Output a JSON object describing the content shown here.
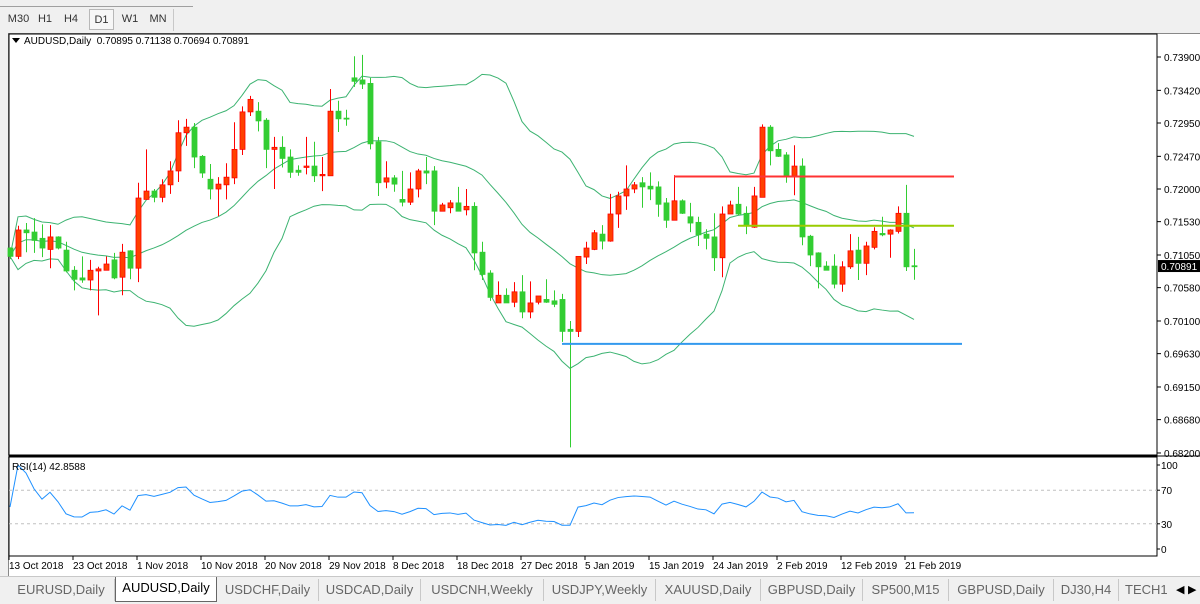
{
  "timeframes": [
    {
      "label": "M30",
      "active": false
    },
    {
      "label": "H1",
      "active": false
    },
    {
      "label": "H4",
      "active": false
    },
    {
      "label": "D1",
      "active": true
    },
    {
      "label": "W1",
      "active": false
    },
    {
      "label": "MN",
      "active": false
    }
  ],
  "chart_header": {
    "symbol": "AUDUSD,Daily",
    "ohlc": "0.70895 0.71138 0.70694 0.70891"
  },
  "rsi_header": "RSI(14) 42.8588",
  "tabs": [
    {
      "label": "EURUSD,Daily",
      "active": false
    },
    {
      "label": "AUDUSD,Daily",
      "active": true
    },
    {
      "label": "USDCHF,Daily",
      "active": false
    },
    {
      "label": "USDCAD,Daily",
      "active": false
    },
    {
      "label": "USDCNH,Weekly",
      "active": false
    },
    {
      "label": "USDJPY,Weekly",
      "active": false
    },
    {
      "label": "XAUUSD,Daily",
      "active": false
    },
    {
      "label": "GBPUSD,Daily",
      "active": false
    },
    {
      "label": "SP500,M15",
      "active": false
    },
    {
      "label": "GBPUSD,Daily",
      "active": false
    },
    {
      "label": "DJ30,H4",
      "active": false
    },
    {
      "label": "TECH1",
      "active": false
    }
  ],
  "tab_scroll_icons": [
    "chevron-left-icon",
    "chevron-right-icon"
  ],
  "chart_data": {
    "type": "candlestick",
    "symbol": "AUDUSD",
    "timeframe": "Daily",
    "colors": {
      "bull_body": "#FF4000",
      "bull_border": "#FF0000",
      "bear_body": "#32CD32",
      "bands": "#3CB371",
      "rsi": "#1E90FF",
      "current_price_bg": "#000000"
    },
    "ylim": [
      0.682,
      0.7402
    ],
    "price_ticks": [
      "0.73900",
      "0.73420",
      "0.72950",
      "0.72470",
      "0.72000",
      "0.71530",
      "0.71050",
      "0.70580",
      "0.70100",
      "0.69630",
      "0.69150",
      "0.68680",
      "0.68200"
    ],
    "current_price": "0.70891",
    "date_labels": [
      "13 Oct 2018",
      "23 Oct 2018",
      "1 Nov 2018",
      "10 Nov 2018",
      "20 Nov 2018",
      "29 Nov 2018",
      "8 Dec 2018",
      "18 Dec 2018",
      "27 Dec 2018",
      "5 Jan 2019",
      "15 Jan 2019",
      "24 Jan 2019",
      "2 Feb 2019",
      "12 Feb 2019",
      "21 Feb 2019"
    ],
    "date_label_every_bars": 8,
    "ohlc_fields": [
      "open",
      "high",
      "low",
      "close"
    ],
    "candles": [
      [
        0.7115,
        0.7116,
        0.7099,
        0.7103
      ],
      [
        0.7103,
        0.7147,
        0.7099,
        0.7141
      ],
      [
        0.7141,
        0.7151,
        0.7109,
        0.7137
      ],
      [
        0.7138,
        0.7158,
        0.7108,
        0.7126
      ],
      [
        0.7129,
        0.7149,
        0.7102,
        0.7115
      ],
      [
        0.7113,
        0.7148,
        0.7086,
        0.7131
      ],
      [
        0.7131,
        0.7132,
        0.7113,
        0.7115
      ],
      [
        0.7112,
        0.7124,
        0.708,
        0.7082
      ],
      [
        0.7083,
        0.7089,
        0.7054,
        0.707
      ],
      [
        0.7072,
        0.7103,
        0.7065,
        0.7069
      ],
      [
        0.7069,
        0.7098,
        0.7054,
        0.7083
      ],
      [
        0.7082,
        0.7088,
        0.7018,
        0.7085
      ],
      [
        0.7083,
        0.7103,
        0.7083,
        0.7092
      ],
      [
        0.7098,
        0.7108,
        0.707,
        0.7072
      ],
      [
        0.7073,
        0.7121,
        0.7047,
        0.7109
      ],
      [
        0.7111,
        0.7112,
        0.707,
        0.7086
      ],
      [
        0.7086,
        0.7209,
        0.7066,
        0.7187
      ],
      [
        0.7185,
        0.7257,
        0.7185,
        0.7197
      ],
      [
        0.7197,
        0.72,
        0.7181,
        0.7188
      ],
      [
        0.7188,
        0.7214,
        0.7181,
        0.7206
      ],
      [
        0.7206,
        0.724,
        0.7193,
        0.7226
      ],
      [
        0.7226,
        0.7299,
        0.721,
        0.7281
      ],
      [
        0.7281,
        0.7301,
        0.7262,
        0.7289
      ],
      [
        0.7289,
        0.7295,
        0.723,
        0.7246
      ],
      [
        0.7247,
        0.7249,
        0.7216,
        0.7223
      ],
      [
        0.7214,
        0.7236,
        0.7185,
        0.72
      ],
      [
        0.72,
        0.7217,
        0.7161,
        0.7207
      ],
      [
        0.7206,
        0.7237,
        0.7185,
        0.7217
      ],
      [
        0.7216,
        0.7296,
        0.7207,
        0.7257
      ],
      [
        0.7257,
        0.7319,
        0.7249,
        0.7311
      ],
      [
        0.7311,
        0.7334,
        0.7305,
        0.7329
      ],
      [
        0.7312,
        0.7325,
        0.7283,
        0.7298
      ],
      [
        0.7299,
        0.7302,
        0.723,
        0.7257
      ],
      [
        0.7257,
        0.7275,
        0.72,
        0.726
      ],
      [
        0.726,
        0.7276,
        0.7231,
        0.7244
      ],
      [
        0.7246,
        0.7257,
        0.7216,
        0.7224
      ],
      [
        0.7227,
        0.7234,
        0.7219,
        0.7224
      ],
      [
        0.7231,
        0.7275,
        0.7221,
        0.7233
      ],
      [
        0.7233,
        0.7268,
        0.721,
        0.7219
      ],
      [
        0.7219,
        0.7246,
        0.7197,
        0.7221
      ],
      [
        0.7219,
        0.7344,
        0.7219,
        0.7312
      ],
      [
        0.7312,
        0.7327,
        0.7282,
        0.7301
      ],
      [
        0.7302,
        0.7314,
        0.7291,
        0.7301
      ],
      [
        0.736,
        0.7391,
        0.7347,
        0.7355
      ],
      [
        0.7357,
        0.7393,
        0.7344,
        0.7351
      ],
      [
        0.7352,
        0.736,
        0.7257,
        0.7265
      ],
      [
        0.7268,
        0.7275,
        0.719,
        0.7209
      ],
      [
        0.721,
        0.724,
        0.7201,
        0.7216
      ],
      [
        0.7216,
        0.722,
        0.7196,
        0.7207
      ],
      [
        0.7185,
        0.7226,
        0.7175,
        0.7181
      ],
      [
        0.7181,
        0.7224,
        0.7177,
        0.72
      ],
      [
        0.72,
        0.7229,
        0.7188,
        0.7226
      ],
      [
        0.7226,
        0.7246,
        0.7207,
        0.7223
      ],
      [
        0.7226,
        0.7233,
        0.7148,
        0.7168
      ],
      [
        0.7168,
        0.718,
        0.7168,
        0.7177
      ],
      [
        0.7173,
        0.7184,
        0.7165,
        0.718
      ],
      [
        0.718,
        0.7203,
        0.7168,
        0.7168
      ],
      [
        0.717,
        0.72,
        0.7162,
        0.7175
      ],
      [
        0.7175,
        0.7181,
        0.7083,
        0.7108
      ],
      [
        0.7109,
        0.7124,
        0.7069,
        0.7077
      ],
      [
        0.7079,
        0.7083,
        0.7039,
        0.7044
      ],
      [
        0.7036,
        0.7067,
        0.7036,
        0.7047
      ],
      [
        0.7047,
        0.7057,
        0.7036,
        0.7036
      ],
      [
        0.7037,
        0.7066,
        0.703,
        0.7052
      ],
      [
        0.7052,
        0.7076,
        0.7014,
        0.7023
      ],
      [
        0.7023,
        0.7067,
        0.7014,
        0.7036
      ],
      [
        0.7037,
        0.7046,
        0.7034,
        0.7046
      ],
      [
        0.7041,
        0.707,
        0.7036,
        0.7037
      ],
      [
        0.7039,
        0.7054,
        0.703,
        0.7034
      ],
      [
        0.7041,
        0.7049,
        0.698,
        0.6995
      ],
      [
        0.6998,
        0.701,
        0.6828,
        0.6995
      ],
      [
        0.6995,
        0.7103,
        0.6987,
        0.7103
      ],
      [
        0.7102,
        0.7124,
        0.7092,
        0.7115
      ],
      [
        0.7113,
        0.7141,
        0.7112,
        0.7137
      ],
      [
        0.7135,
        0.7148,
        0.7113,
        0.7125
      ],
      [
        0.7125,
        0.7193,
        0.7124,
        0.7164
      ],
      [
        0.7164,
        0.7196,
        0.7144,
        0.719
      ],
      [
        0.719,
        0.7234,
        0.717,
        0.72
      ],
      [
        0.72,
        0.721,
        0.7194,
        0.7206
      ],
      [
        0.7209,
        0.7217,
        0.7173,
        0.7203
      ],
      [
        0.7204,
        0.7224,
        0.7184,
        0.72
      ],
      [
        0.7203,
        0.7211,
        0.716,
        0.7178
      ],
      [
        0.718,
        0.7187,
        0.7144,
        0.7155
      ],
      [
        0.7155,
        0.722,
        0.7155,
        0.7183
      ],
      [
        0.7183,
        0.7185,
        0.7164,
        0.7165
      ],
      [
        0.716,
        0.718,
        0.7138,
        0.7151
      ],
      [
        0.7152,
        0.716,
        0.7118,
        0.7134
      ],
      [
        0.7135,
        0.7142,
        0.7113,
        0.7129
      ],
      [
        0.7131,
        0.7165,
        0.7082,
        0.7101
      ],
      [
        0.7101,
        0.7175,
        0.7073,
        0.7164
      ],
      [
        0.7164,
        0.7183,
        0.7164,
        0.7177
      ],
      [
        0.7178,
        0.7203,
        0.7162,
        0.7164
      ],
      [
        0.7165,
        0.7175,
        0.7135,
        0.7148
      ],
      [
        0.7145,
        0.7203,
        0.7144,
        0.719
      ],
      [
        0.7188,
        0.7293,
        0.7188,
        0.7289
      ],
      [
        0.7289,
        0.7292,
        0.7234,
        0.7255
      ],
      [
        0.7257,
        0.7266,
        0.7246,
        0.7247
      ],
      [
        0.7249,
        0.7253,
        0.7209,
        0.7219
      ],
      [
        0.7219,
        0.7263,
        0.7191,
        0.7233
      ],
      [
        0.7233,
        0.7244,
        0.7119,
        0.7131
      ],
      [
        0.7132,
        0.7134,
        0.7089,
        0.7105
      ],
      [
        0.7108,
        0.7109,
        0.7057,
        0.7088
      ],
      [
        0.7089,
        0.7096,
        0.7083,
        0.7083
      ],
      [
        0.7089,
        0.7106,
        0.7057,
        0.7063
      ],
      [
        0.7063,
        0.7096,
        0.7052,
        0.7088
      ],
      [
        0.7088,
        0.7135,
        0.7085,
        0.7111
      ],
      [
        0.7112,
        0.7131,
        0.7069,
        0.7093
      ],
      [
        0.7093,
        0.7124,
        0.7076,
        0.7118
      ],
      [
        0.7116,
        0.7145,
        0.7113,
        0.7139
      ],
      [
        0.7136,
        0.716,
        0.7132,
        0.7134
      ],
      [
        0.7135,
        0.7142,
        0.7101,
        0.7141
      ],
      [
        0.7139,
        0.7175,
        0.7136,
        0.7165
      ],
      [
        0.7165,
        0.7206,
        0.7082,
        0.7088
      ],
      [
        0.70895,
        0.71138,
        0.70694,
        0.70891
      ]
    ],
    "bollinger": {
      "period": 20,
      "deviations": 2
    },
    "horizontal_lines": [
      {
        "price": 0.7218,
        "color": "#FF3333",
        "from_bar": 83,
        "to_bar": 118
      },
      {
        "price": 0.7147,
        "color": "#99CC00",
        "from_bar": 91,
        "to_bar": 118
      },
      {
        "price": 0.6977,
        "color": "#3399EE",
        "from_bar": 69,
        "to_bar": 119
      }
    ],
    "rsi": {
      "period": 14,
      "value": "42.8588",
      "levels": [
        70,
        30
      ],
      "ylim": [
        0,
        100
      ],
      "ticks": [
        "100",
        "70",
        "30",
        "0"
      ]
    }
  }
}
